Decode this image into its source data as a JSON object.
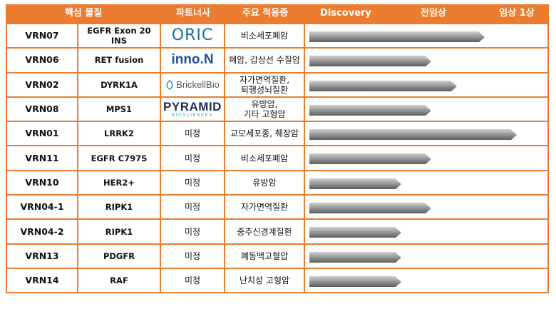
{
  "header": {
    "substance": "핵심 물질",
    "partner": "파트너사",
    "indication": "주요 적응증",
    "stage_discovery": "Discovery",
    "stage_preclinical": "전임상",
    "stage_phase1": "임상 1상"
  },
  "colors": {
    "accent": "#ec7c30",
    "bar_light": "#d0d0d0",
    "bar_dark": "#555555"
  },
  "rows": [
    {
      "code": "VRN07",
      "target": "EGFR Exon 20 INS",
      "partner": "ORIC",
      "partner_type": "logo-oric",
      "indication": "비소세포폐암",
      "progress": 0.82
    },
    {
      "code": "VRN06",
      "target": "RET fusion",
      "partner": "inno.N",
      "partner_type": "logo-inno",
      "indication": "폐암, 갑상선 수질암",
      "progress": 0.57
    },
    {
      "code": "VRN02",
      "target": "DYRK1A",
      "partner": "BrickellBio",
      "partner_type": "logo-brickell",
      "indication": "자가면역질환,\n퇴행성뇌질환",
      "progress": 0.69
    },
    {
      "code": "VRN08",
      "target": "MPS1",
      "partner": "PYRAMID",
      "partner_sub": "BIOSCIENCES",
      "partner_type": "logo-pyr",
      "indication": "유방암,\n기타 고형암",
      "progress": 0.57
    },
    {
      "code": "VRN01",
      "target": "LRRK2",
      "partner": "미정",
      "partner_type": "text",
      "indication": "교모세포종, 췌장암",
      "progress": 0.97
    },
    {
      "code": "VRN11",
      "target": "EGFR C797S",
      "partner": "미정",
      "partner_type": "text",
      "indication": "비소세포폐암",
      "progress": 0.57
    },
    {
      "code": "VRN10",
      "target": "HER2+",
      "partner": "미정",
      "partner_type": "text",
      "indication": "유방암",
      "progress": 0.43
    },
    {
      "code": "VRN04-1",
      "target": "RIPK1",
      "partner": "미정",
      "partner_type": "text",
      "indication": "자가면역질환",
      "progress": 0.57
    },
    {
      "code": "VRN04-2",
      "target": "RIPK1",
      "partner": "미정",
      "partner_type": "text",
      "indication": "중추신경계질환",
      "progress": 0.43
    },
    {
      "code": "VRN13",
      "target": "PDGFR",
      "partner": "미정",
      "partner_type": "text",
      "indication": "폐동맥고혈압",
      "progress": 0.43
    },
    {
      "code": "VRN14",
      "target": "RAF",
      "partner": "미정",
      "partner_type": "text",
      "indication": "난치성 고형암",
      "progress": 0.43
    }
  ]
}
